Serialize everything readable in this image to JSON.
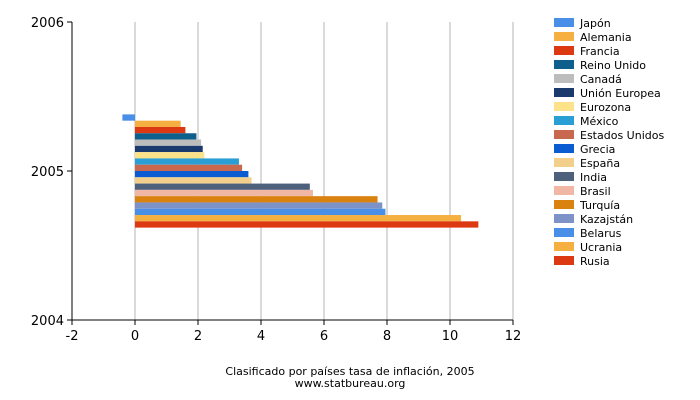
{
  "chart_data": {
    "type": "bar",
    "orientation": "horizontal",
    "caption": "Clasificado por países tasa de inflación, 2005",
    "source": "www.statbureau.org",
    "x_ticks": [
      "-2",
      "0",
      "2",
      "4",
      "6",
      "8",
      "10",
      "12"
    ],
    "xlim": [
      -2,
      12
    ],
    "y_ticks": [
      "2006",
      "2005",
      "2004"
    ],
    "ylim": [
      2004,
      2006
    ],
    "grid": true,
    "legend_position": "right",
    "series": [
      {
        "name": "Japón",
        "value": -0.4,
        "color": "#4a8fe7"
      },
      {
        "name": "Alemania",
        "value": 1.45,
        "color": "#f5b041"
      },
      {
        "name": "Francia",
        "value": 1.6,
        "color": "#dc3912"
      },
      {
        "name": "Reino Unido",
        "value": 1.95,
        "color": "#0f5f8c"
      },
      {
        "name": "Canadá",
        "value": 2.1,
        "color": "#bdbdbd"
      },
      {
        "name": "Unión Europea",
        "value": 2.15,
        "color": "#1a3a6e"
      },
      {
        "name": "Eurozona",
        "value": 2.2,
        "color": "#fce38a"
      },
      {
        "name": "México",
        "value": 3.3,
        "color": "#2a9fd6"
      },
      {
        "name": "Estados Unidos",
        "value": 3.4,
        "color": "#c8694f"
      },
      {
        "name": "Grecia",
        "value": 3.6,
        "color": "#0b5cd1"
      },
      {
        "name": "España",
        "value": 3.7,
        "color": "#f2d08c"
      },
      {
        "name": "India",
        "value": 5.55,
        "color": "#4e617c"
      },
      {
        "name": "Brasil",
        "value": 5.65,
        "color": "#f0b7a4"
      },
      {
        "name": "Turquía",
        "value": 7.7,
        "color": "#d9820f"
      },
      {
        "name": "Kazajstán",
        "value": 7.85,
        "color": "#7d93c7"
      },
      {
        "name": "Belarus",
        "value": 7.95,
        "color": "#4a8fe7"
      },
      {
        "name": "Ucrania",
        "value": 10.35,
        "color": "#f5b041"
      },
      {
        "name": "Rusia",
        "value": 10.9,
        "color": "#dc3912"
      }
    ]
  }
}
